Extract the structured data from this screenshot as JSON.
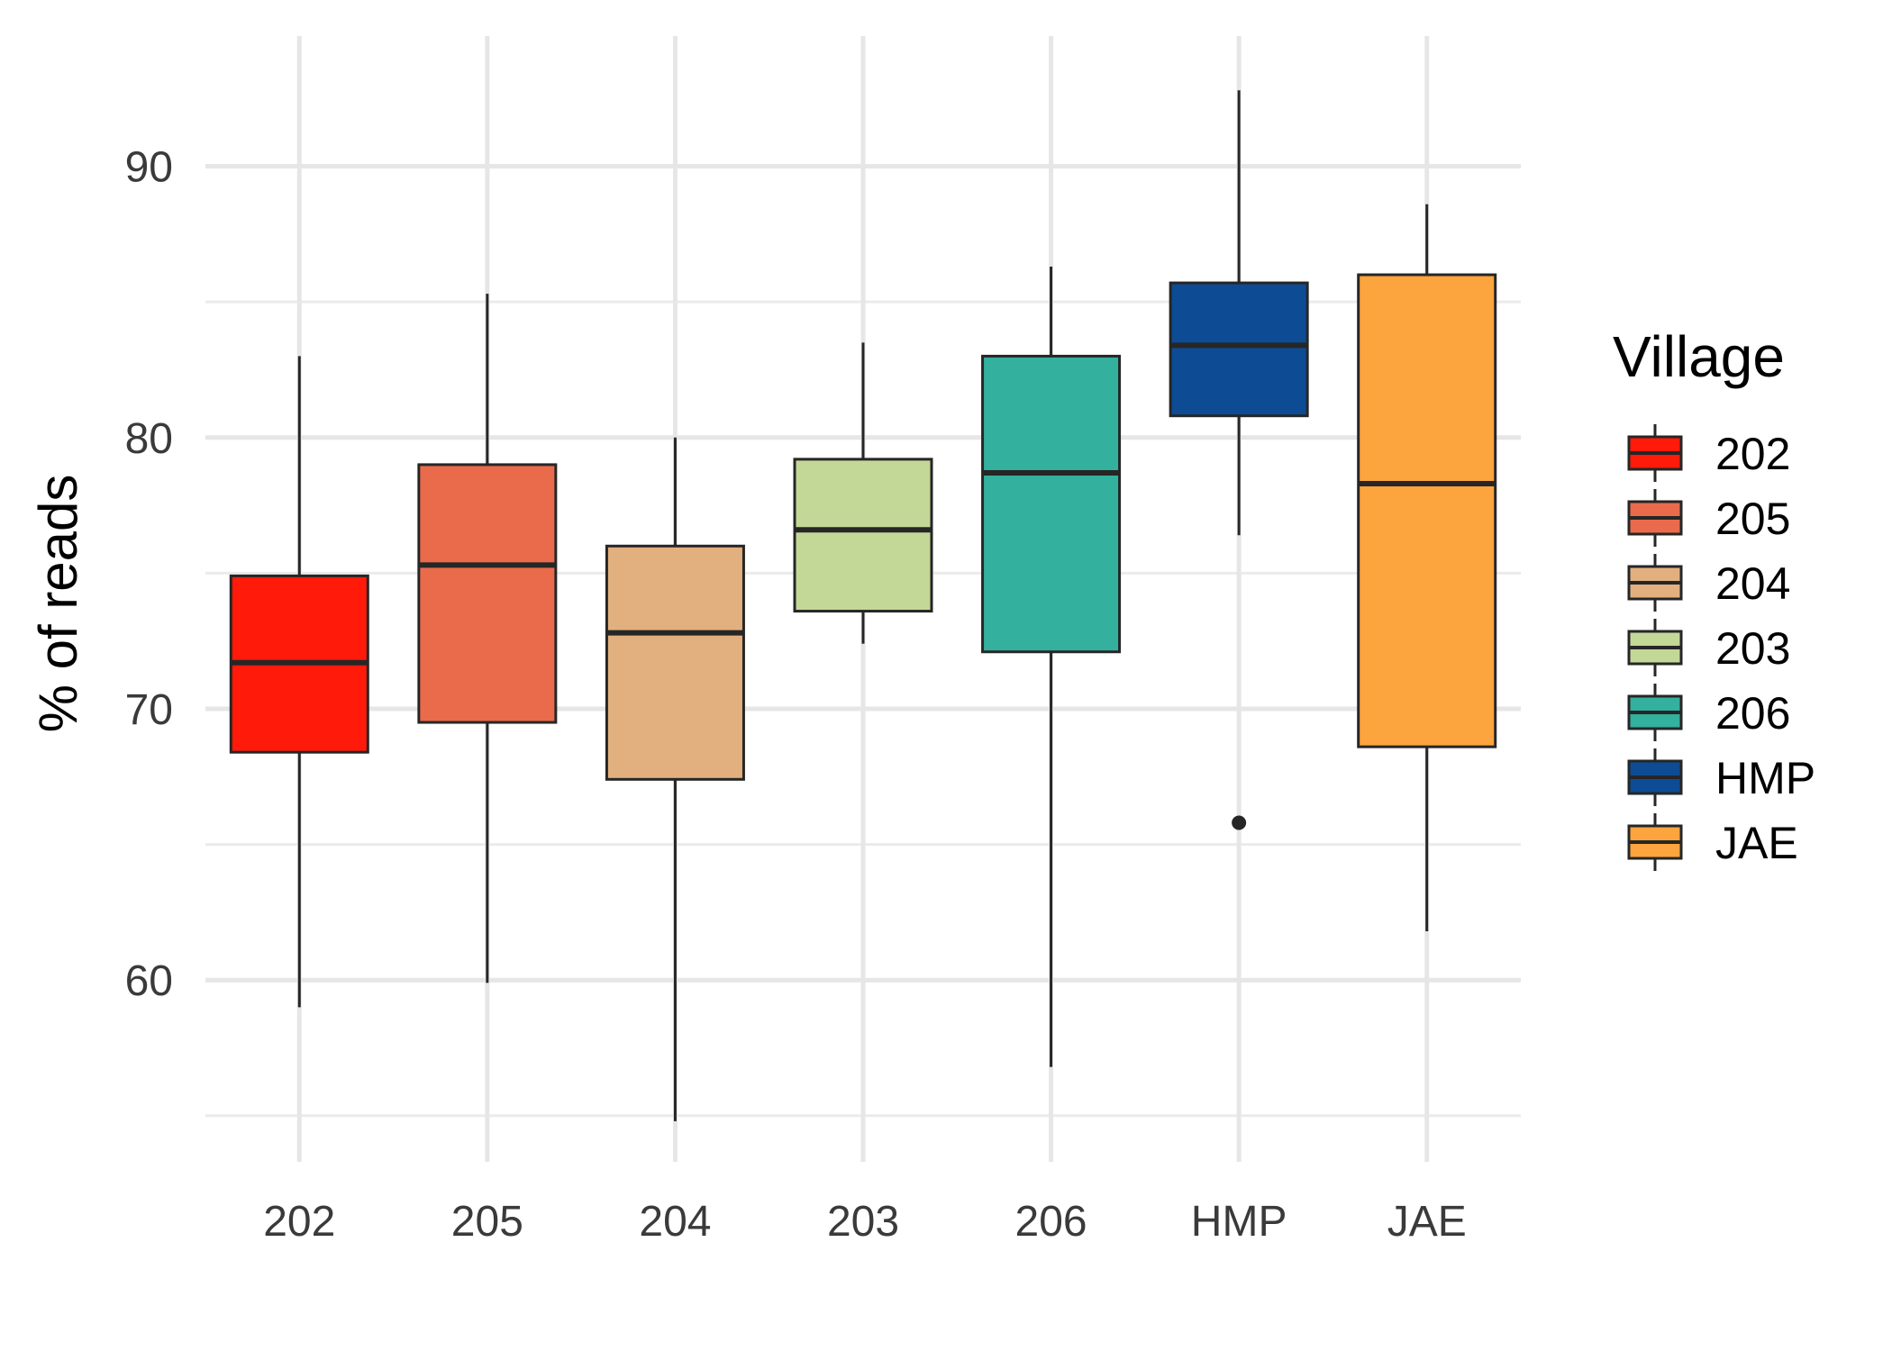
{
  "chart_data": {
    "type": "boxplot",
    "title": "",
    "xlabel": "",
    "ylabel": "% of reads",
    "ylim": [
      53.3,
      94.8
    ],
    "yticks": [
      60,
      70,
      80,
      90
    ],
    "grid": true,
    "legend": {
      "title": "Village",
      "placement": "right"
    },
    "categories": [
      "202",
      "205",
      "204",
      "203",
      "206",
      "HMP",
      "JAE"
    ],
    "colors": {
      "202": "#ff1a0a",
      "205": "#e96b4b",
      "204": "#e2b07e",
      "203": "#c3d897",
      "206": "#33b09e",
      "HMP": "#0d4c94",
      "JAE": "#fca43e"
    },
    "series": [
      {
        "category": "202",
        "whisker_low": 59.0,
        "q1": 68.4,
        "median": 71.7,
        "q3": 74.9,
        "whisker_high": 83.0,
        "outliers": []
      },
      {
        "category": "205",
        "whisker_low": 59.9,
        "q1": 69.5,
        "median": 75.3,
        "q3": 79.0,
        "whisker_high": 85.3,
        "outliers": []
      },
      {
        "category": "204",
        "whisker_low": 54.8,
        "q1": 67.4,
        "median": 72.8,
        "q3": 76.0,
        "whisker_high": 80.0,
        "outliers": []
      },
      {
        "category": "203",
        "whisker_low": 72.4,
        "q1": 73.6,
        "median": 76.6,
        "q3": 79.2,
        "whisker_high": 83.5,
        "outliers": []
      },
      {
        "category": "206",
        "whisker_low": 56.8,
        "q1": 72.1,
        "median": 78.7,
        "q3": 83.0,
        "whisker_high": 86.3,
        "outliers": []
      },
      {
        "category": "HMP",
        "whisker_low": 76.4,
        "q1": 80.8,
        "median": 83.4,
        "q3": 85.7,
        "whisker_high": 92.8,
        "outliers": [
          65.8
        ]
      },
      {
        "category": "JAE",
        "whisker_low": 61.8,
        "q1": 68.6,
        "median": 78.3,
        "q3": 86.0,
        "whisker_high": 88.6,
        "outliers": []
      }
    ]
  }
}
